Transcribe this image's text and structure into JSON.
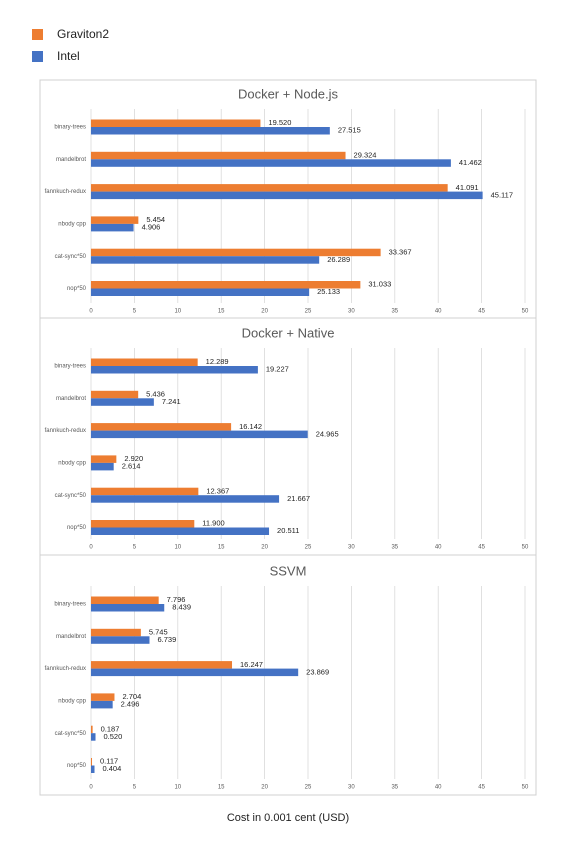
{
  "chart_data": [
    {
      "type": "bar",
      "orientation": "horizontal",
      "title": "Docker + Node.js",
      "categories": [
        "binary-trees",
        "mandelbrot",
        "fannkuch-redux",
        "nbody cpp",
        "cat-sync*50",
        "nop*50"
      ],
      "series": [
        {
          "name": "Graviton2",
          "color": "#ed7d31",
          "values": [
            19.52,
            29.324,
            41.091,
            5.454,
            33.367,
            31.033
          ],
          "value_labels": [
            "19.520",
            "29.324",
            "41.091",
            "5.454",
            "33.367",
            "31.033"
          ]
        },
        {
          "name": "Intel",
          "color": "#4472c4",
          "values": [
            27.515,
            41.462,
            45.117,
            4.906,
            26.289,
            25.133
          ],
          "value_labels": [
            "27.515",
            "41.462",
            "45.117",
            "4.906",
            "26.289",
            "25.133"
          ]
        }
      ],
      "xlim": [
        0,
        50
      ],
      "xticks": [
        0,
        5,
        10,
        15,
        20,
        25,
        30,
        35,
        40,
        45,
        50
      ],
      "grid": true
    },
    {
      "type": "bar",
      "orientation": "horizontal",
      "title": "Docker + Native",
      "categories": [
        "binary-trees",
        "mandelbrot",
        "fannkuch-redux",
        "nbody cpp",
        "cat-sync*50",
        "nop*50"
      ],
      "series": [
        {
          "name": "Graviton2",
          "color": "#ed7d31",
          "values": [
            12.289,
            5.436,
            16.142,
            2.92,
            12.367,
            11.9
          ],
          "value_labels": [
            "12.289",
            "5.436",
            "16.142",
            "2.920",
            "12.367",
            "11.900"
          ]
        },
        {
          "name": "Intel",
          "color": "#4472c4",
          "values": [
            19.227,
            7.241,
            24.965,
            2.614,
            21.667,
            20.511
          ],
          "value_labels": [
            "19.227",
            "7.241",
            "24.965",
            "2.614",
            "21.667",
            "20.511"
          ]
        }
      ],
      "xlim": [
        0,
        50
      ],
      "xticks": [
        0,
        5,
        10,
        15,
        20,
        25,
        30,
        35,
        40,
        45,
        50
      ],
      "grid": true
    },
    {
      "type": "bar",
      "orientation": "horizontal",
      "title": "SSVM",
      "categories": [
        "binary-trees",
        "mandelbrot",
        "fannkuch-redux",
        "nbody cpp",
        "cat-sync*50",
        "nop*50"
      ],
      "series": [
        {
          "name": "Graviton2",
          "color": "#ed7d31",
          "values": [
            7.796,
            5.745,
            16.247,
            2.704,
            0.187,
            0.117
          ],
          "value_labels": [
            "7.796",
            "5.745",
            "16.247",
            "2.704",
            "0.187",
            "0.117"
          ]
        },
        {
          "name": "Intel",
          "color": "#4472c4",
          "values": [
            8.439,
            6.739,
            23.869,
            2.496,
            0.52,
            0.404
          ],
          "value_labels": [
            "8.439",
            "6.739",
            "23.869",
            "2.496",
            "0.520",
            "0.404"
          ]
        }
      ],
      "xlim": [
        0,
        50
      ],
      "xticks": [
        0,
        5,
        10,
        15,
        20,
        25,
        30,
        35,
        40,
        45,
        50
      ],
      "grid": true,
      "xlabel": "Cost in 0.001 cent (USD)"
    }
  ]
}
